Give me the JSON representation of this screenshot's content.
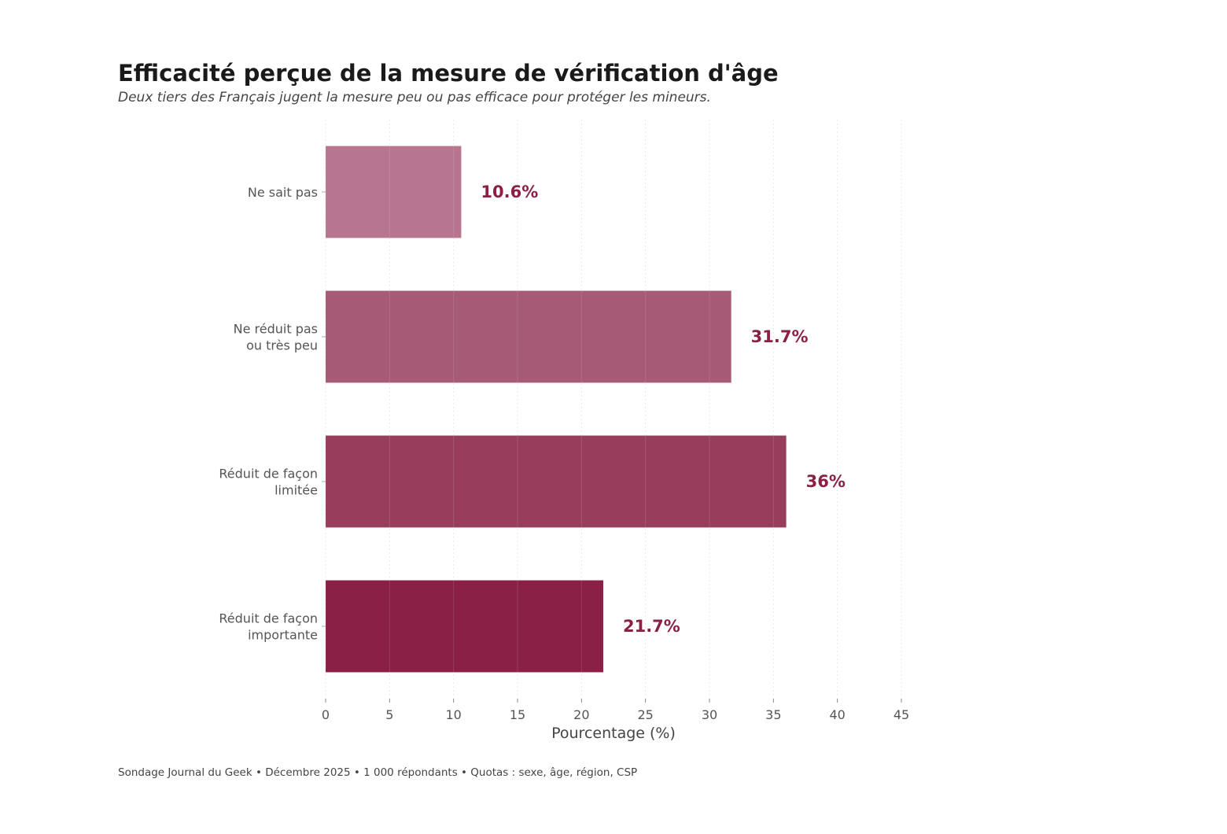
{
  "chart_data": {
    "type": "bar",
    "orientation": "horizontal",
    "title": "Efficacité perçue de la mesure de vérification d'âge",
    "subtitle": "Deux tiers des Français jugent la mesure peu ou pas efficace pour protéger les mineurs.",
    "xlabel": "Pourcentage (%)",
    "ylabel": "",
    "xlim": [
      0,
      45
    ],
    "xticks": [
      0,
      5,
      10,
      15,
      20,
      25,
      30,
      35,
      40,
      45
    ],
    "grid": true,
    "categories": [
      [
        "Ne sait pas"
      ],
      [
        "Ne réduit pas",
        "ou très peu"
      ],
      [
        "Réduit de façon",
        "limitée"
      ],
      [
        "Réduit de façon",
        "importante"
      ]
    ],
    "values": [
      10.6,
      31.7,
      36,
      21.7
    ],
    "value_labels": [
      "10.6%",
      "31.7%",
      "36%",
      "21.7%"
    ],
    "colors": [
      "#b8758f",
      "#a65a76",
      "#983e5c",
      "#8a2046"
    ],
    "label_color": "#8a2046"
  },
  "footer": "Sondage Journal du Geek • Décembre 2025 • 1 000 répondants • Quotas : sexe, âge, région, CSP"
}
